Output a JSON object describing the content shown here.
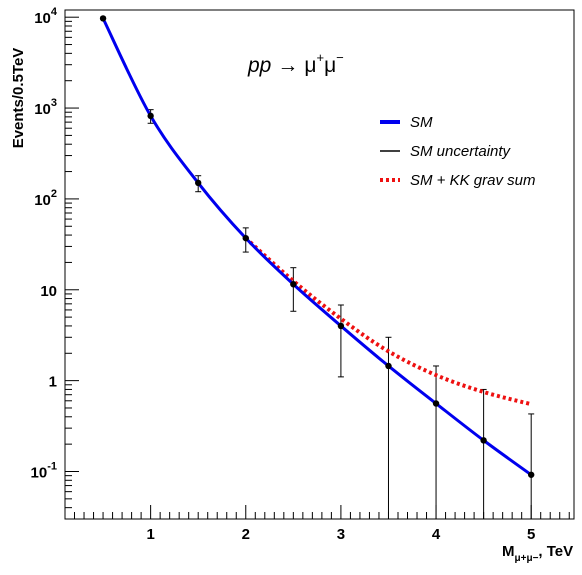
{
  "chart_data": {
    "type": "line",
    "title": "",
    "annotation": {
      "process": "pp",
      "arrow": "→",
      "final_state": "μ",
      "plus": "+",
      "minus": "−"
    },
    "xlabel": {
      "main": "M",
      "sub": "μ+μ−",
      "unit": ", TeV"
    },
    "ylabel": "Events/0.5TeV",
    "xlim": [
      0.1,
      5.45
    ],
    "ylim": [
      0.03,
      12000
    ],
    "yscale": "log",
    "grid": false,
    "legend_position": "top-right",
    "x_ticks": [
      {
        "value": 1,
        "label": "1"
      },
      {
        "value": 2,
        "label": "2"
      },
      {
        "value": 3,
        "label": "3"
      },
      {
        "value": 4,
        "label": "4"
      },
      {
        "value": 5,
        "label": "5"
      }
    ],
    "y_ticks": [
      {
        "value": 0.1,
        "base": "10",
        "exp": "-1"
      },
      {
        "value": 1,
        "base": "1",
        "exp": ""
      },
      {
        "value": 10,
        "base": "10",
        "exp": ""
      },
      {
        "value": 100,
        "base": "10",
        "exp": "2"
      },
      {
        "value": 1000,
        "base": "10",
        "exp": "3"
      },
      {
        "value": 10000,
        "base": "10",
        "exp": "4"
      }
    ],
    "series": [
      {
        "name": "SM",
        "style": "solid",
        "color": "#0000ee",
        "x": [
          0.5,
          1.0,
          1.5,
          2.0,
          2.5,
          3.0,
          3.5,
          4.0,
          4.5,
          5.0
        ],
        "y": [
          9700,
          820,
          150,
          37,
          11.5,
          4.0,
          1.45,
          0.56,
          0.22,
          0.092
        ]
      },
      {
        "name": "SM + KK grav sum",
        "style": "dotted",
        "color": "#ee1111",
        "x": [
          2.0,
          2.5,
          3.0,
          3.5,
          4.0,
          4.5,
          5.0
        ],
        "y": [
          37,
          12.5,
          4.8,
          2.1,
          1.15,
          0.75,
          0.55
        ]
      }
    ],
    "points": {
      "name": "SM uncertainty",
      "color": "#000000",
      "x": [
        0.5,
        1.0,
        1.5,
        2.0,
        2.5,
        3.0,
        3.5,
        4.0,
        4.5,
        5.0
      ],
      "y": [
        9700,
        820,
        150,
        37,
        11.5,
        4.0,
        1.45,
        0.56,
        0.22,
        0.092
      ],
      "err_low": [
        9600,
        680,
        120,
        26,
        5.8,
        1.1,
        0.005,
        0.005,
        0.005,
        0.005
      ],
      "err_high": [
        9800,
        960,
        180,
        48,
        17.5,
        6.8,
        3.0,
        1.45,
        0.8,
        0.43
      ]
    },
    "legend": [
      {
        "label": "SM",
        "swatch": "solid",
        "color": "#0000ee"
      },
      {
        "label": "SM uncertainty",
        "swatch": "line",
        "color": "#000000"
      },
      {
        "label": "SM + KK grav sum",
        "swatch": "dotted",
        "color": "#ee1111"
      }
    ]
  }
}
